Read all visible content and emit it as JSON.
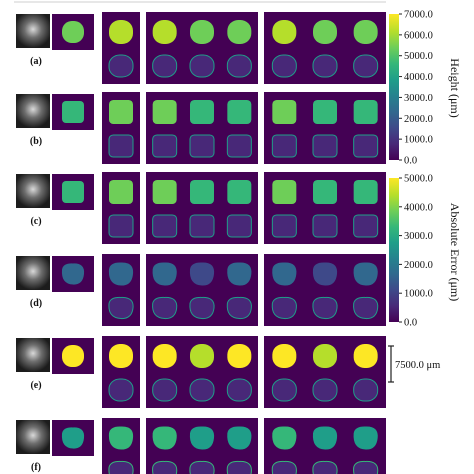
{
  "figure": {
    "rows": [
      {
        "label": "(a)",
        "height_level": 0.8,
        "error_level": 0.2,
        "shape": "round"
      },
      {
        "label": "(b)",
        "height_level": 0.72,
        "error_level": 0.15,
        "shape": "square"
      },
      {
        "label": "(c)",
        "height_level": 0.7,
        "error_level": 0.25,
        "shape": "square"
      },
      {
        "label": "(d)",
        "height_level": 0.3,
        "error_level": 0.2,
        "shape": "blob"
      },
      {
        "label": "(e)",
        "height_level": 0.95,
        "error_level": 0.2,
        "shape": "round"
      },
      {
        "label": "(f)",
        "height_level": 0.6,
        "error_level": 0.3,
        "shape": "irregular"
      }
    ],
    "height_colorbar": {
      "ticks": [
        "7000.0",
        "6000.0",
        "5000.0",
        "4000.0",
        "3000.0",
        "2000.0",
        "1000.0",
        "0.0"
      ],
      "label": "Height (μm)"
    },
    "error_colorbar": {
      "ticks": [
        "5000.0",
        "4000.0",
        "3000.0",
        "2000.0",
        "1000.0",
        "0.0"
      ],
      "label": "Absolute Error (μm)"
    },
    "scale_bar": {
      "label": "7500.0 μm"
    },
    "colors": {
      "background": "#440154",
      "viridis": [
        "#440154",
        "#482878",
        "#3e4989",
        "#31688e",
        "#26828e",
        "#1f9e89",
        "#35b779",
        "#6ece58",
        "#b5de2b",
        "#fde725"
      ]
    }
  }
}
